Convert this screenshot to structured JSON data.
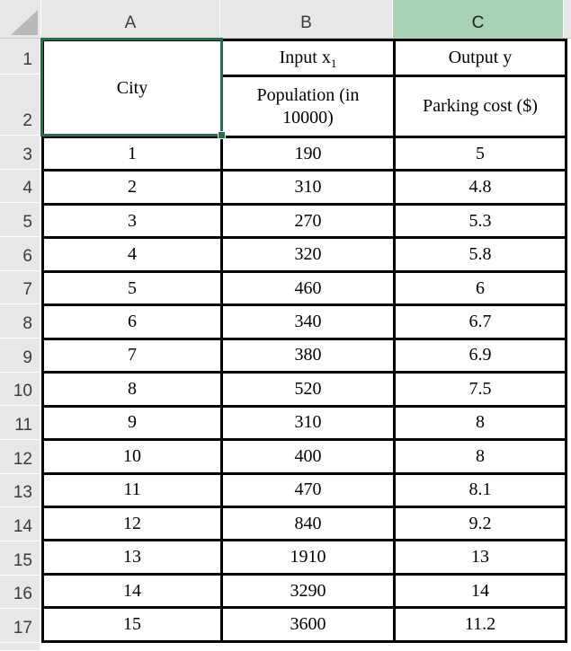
{
  "sheet": {
    "column_headers": [
      "A",
      "B",
      "C"
    ],
    "selected_column": "C",
    "row_numbers": [
      "1",
      "2",
      "3",
      "4",
      "5",
      "6",
      "7",
      "8",
      "9",
      "10",
      "11",
      "12",
      "13",
      "14",
      "15",
      "16",
      "17"
    ]
  },
  "table_headers": {
    "city": "City",
    "input_label": "Input x",
    "input_subscript": "1",
    "output_label": "Output y",
    "population_label": "Population (in 10000)",
    "parking_label": "Parking cost ($)"
  },
  "rows": [
    {
      "city": "1",
      "population": "190",
      "cost": "5"
    },
    {
      "city": "2",
      "population": "310",
      "cost": "4.8"
    },
    {
      "city": "3",
      "population": "270",
      "cost": "5.3"
    },
    {
      "city": "4",
      "population": "320",
      "cost": "5.8"
    },
    {
      "city": "5",
      "population": "460",
      "cost": "6"
    },
    {
      "city": "6",
      "population": "340",
      "cost": "6.7"
    },
    {
      "city": "7",
      "population": "380",
      "cost": "6.9"
    },
    {
      "city": "8",
      "population": "520",
      "cost": "7.5"
    },
    {
      "city": "9",
      "population": "310",
      "cost": "8"
    },
    {
      "city": "10",
      "population": "400",
      "cost": "8"
    },
    {
      "city": "11",
      "population": "470",
      "cost": "8.1"
    },
    {
      "city": "12",
      "population": "840",
      "cost": "9.2"
    },
    {
      "city": "13",
      "population": "1910",
      "cost": "13"
    },
    {
      "city": "14",
      "population": "3290",
      "cost": "14"
    },
    {
      "city": "15",
      "population": "3600",
      "cost": "11.2"
    }
  ],
  "colors": {
    "selected_header_fill": "#A8D2B4",
    "selection_border": "#217346",
    "grid_border": "#000000",
    "header_bg": "#E7E7E7"
  }
}
